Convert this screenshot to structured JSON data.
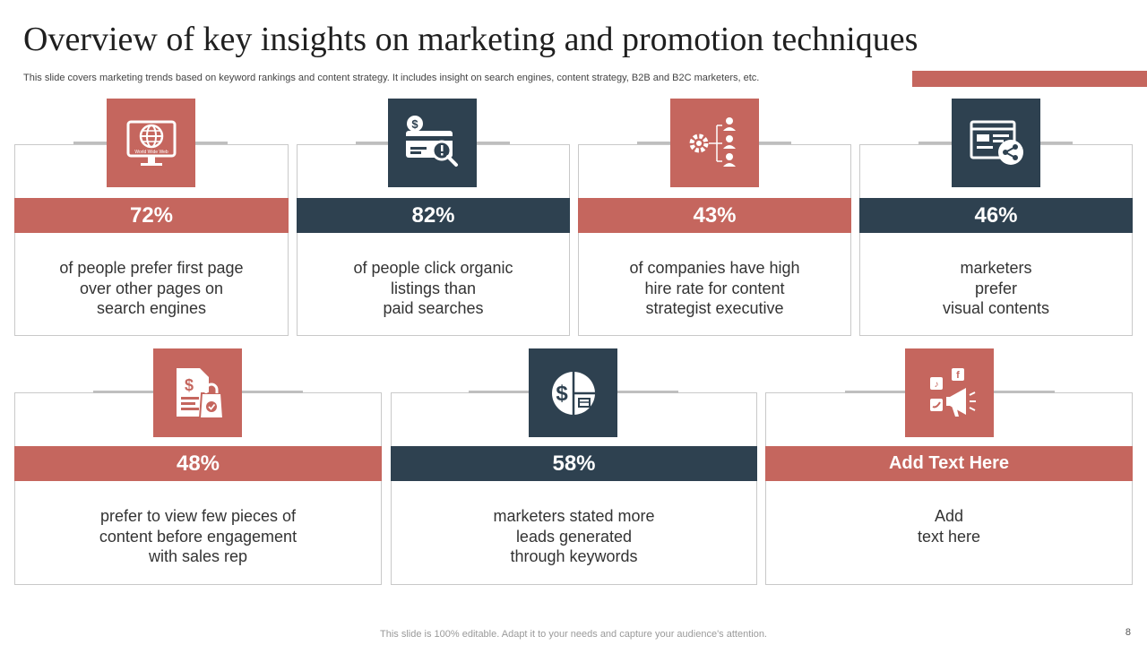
{
  "title": "Overview of key insights on marketing and promotion techniques",
  "subtitle": "This slide covers marketing trends based on keyword rankings and content strategy. It includes insight on search engines, content strategy, B2B and B2C marketers, etc.",
  "colors": {
    "accent": "#c5665e",
    "dark": "#2e4150",
    "border": "#c9c9c9"
  },
  "cards": [
    {
      "icon": "world-wide-web-icon",
      "icon_label": "World Wide Web",
      "stat": "72%",
      "lines": [
        "of people prefer first page",
        "over other pages on",
        "search engines"
      ]
    },
    {
      "icon": "paid-search-card-icon",
      "stat": "82%",
      "lines": [
        "of people click organic",
        "listings than",
        "paid searches"
      ]
    },
    {
      "icon": "content-strategist-hierarchy-icon",
      "stat": "43%",
      "lines": [
        "of companies have high",
        "hire rate for content",
        "strategist executive"
      ]
    },
    {
      "icon": "visual-content-share-icon",
      "stat": "46%",
      "lines": [
        "marketers",
        "prefer",
        "visual contents"
      ]
    },
    {
      "icon": "invoice-shopping-bag-icon",
      "stat": "48%",
      "lines": [
        "prefer to view few pieces of",
        "content before engagement",
        "with sales rep"
      ]
    },
    {
      "icon": "dollar-pie-chart-icon",
      "stat": "58%",
      "lines": [
        "marketers stated more",
        "leads generated",
        "through keywords"
      ]
    },
    {
      "icon": "social-media-megaphone-icon",
      "stat": "Add Text Here",
      "lines": [
        "Add",
        "text here"
      ]
    }
  ],
  "footer": "This slide is 100% editable. Adapt it to your needs and capture your audience's attention.",
  "page_number": "8"
}
